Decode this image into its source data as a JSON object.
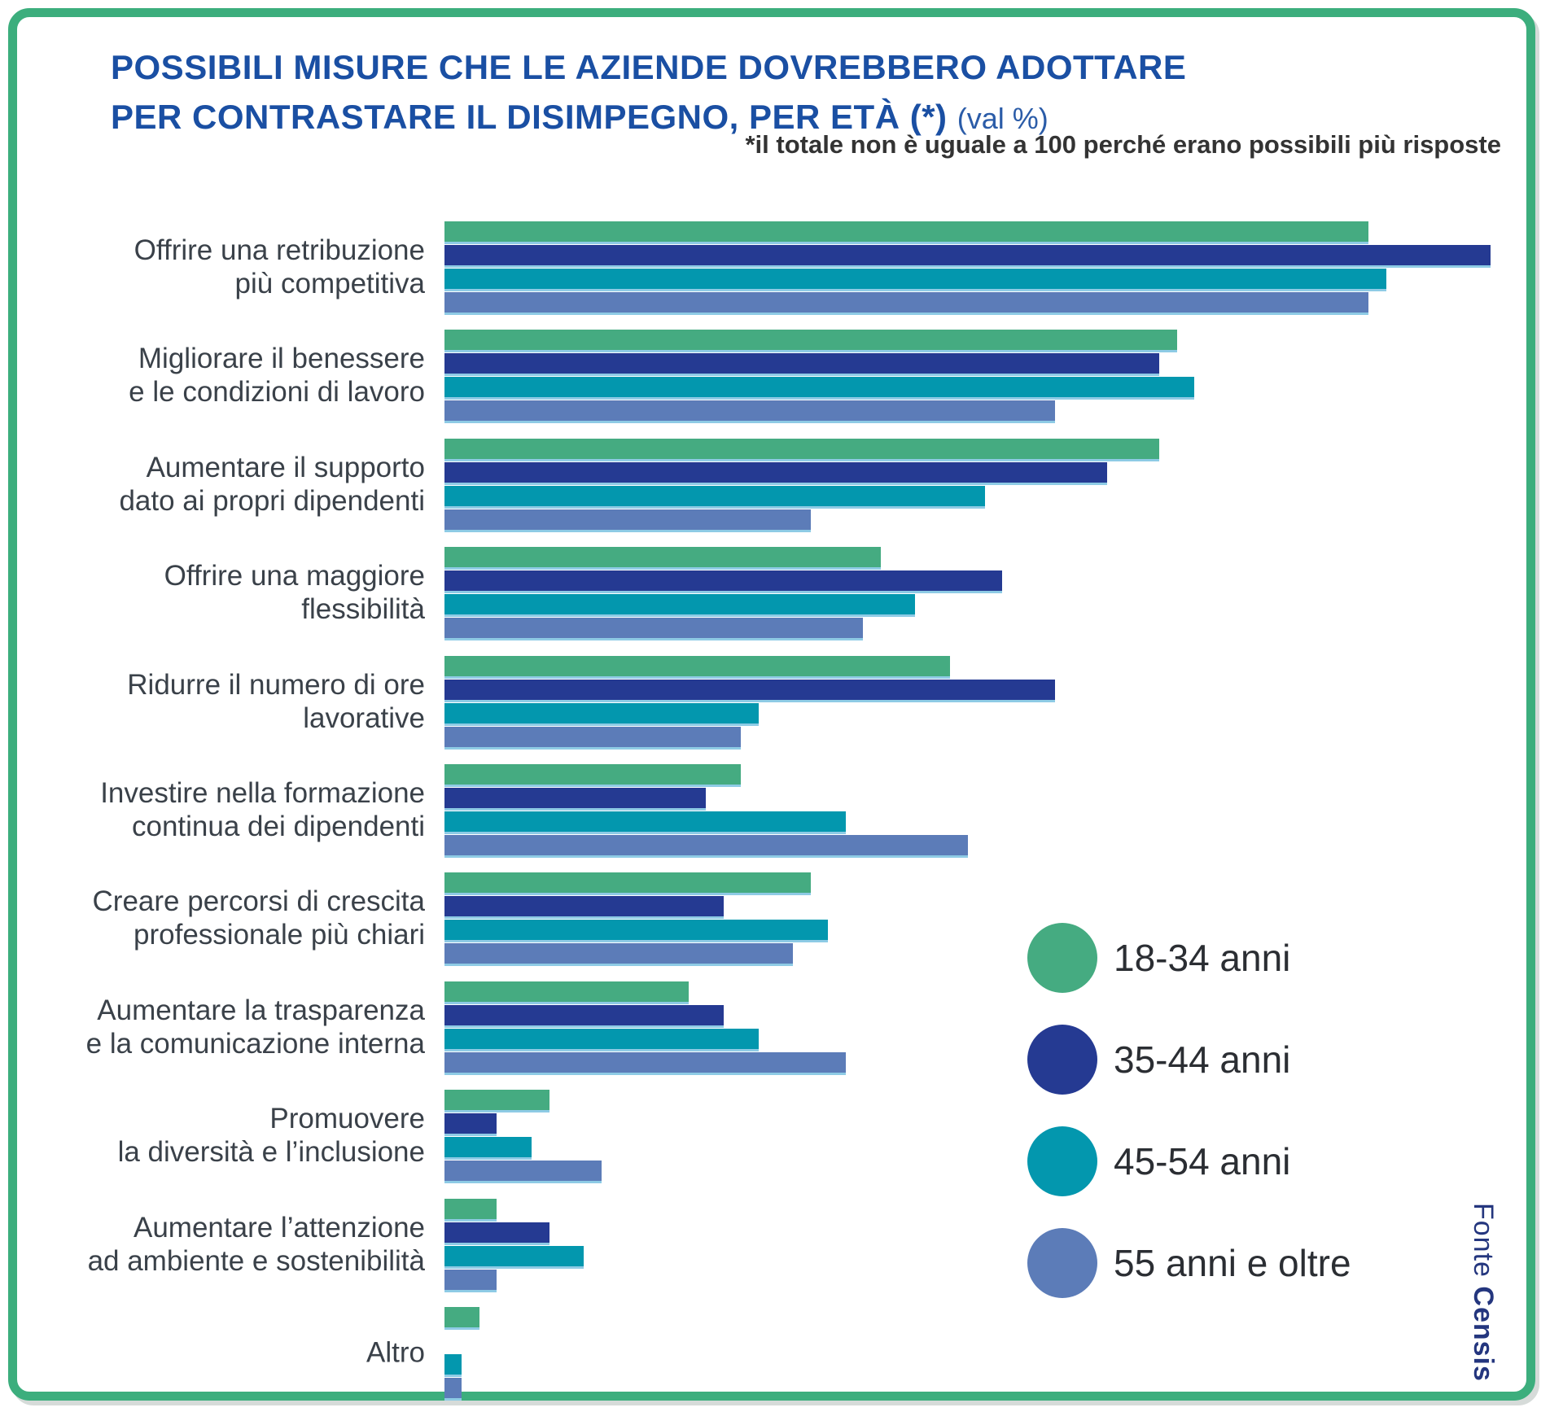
{
  "title": {
    "line1": "POSSIBILI MISURE CHE LE AZIENDE DOVREBBERO ADOTTARE",
    "line2": "PER CONTRASTARE IL DISIMPEGNO, PER ETÀ (*)",
    "suffix": "(val %)"
  },
  "note": "*il totale non è uguale a 100 perché erano possibili più risposte",
  "source": {
    "prefix": "Fonte ",
    "name": "Censis"
  },
  "colors": {
    "frame_green": "#3CAE7D",
    "title_blue": "#1A4FA3",
    "note_text": "#333333",
    "label_text": "#3A4149",
    "bar_edge_lightblue": "#8ECBE5",
    "series_18_34": "#45AB81",
    "series_35_44": "#253A92",
    "series_45_54": "#0397AE",
    "series_55_plus": "#5C7CB8",
    "source_text": "#24367E"
  },
  "legend": [
    {
      "key": "18-34",
      "label": "18-34 anni",
      "color": "#45AB81"
    },
    {
      "key": "35-44",
      "label": "35-44 anni",
      "color": "#253A92"
    },
    {
      "key": "45-54",
      "label": "45-54 anni",
      "color": "#0397AE"
    },
    {
      "key": "55-oltre",
      "label": "55 anni e oltre",
      "color": "#5C7CB8"
    }
  ],
  "chart_data": {
    "type": "bar",
    "orientation": "horizontal",
    "unit": "val %",
    "title": "Possibili misure che le aziende dovrebbero adottare per contrastare il disimpegno, per età (val %)",
    "note": "*il totale non è uguale a 100 perché erano possibili più risposte",
    "legend_position": "right-middle",
    "grid": false,
    "value_axis_shown": false,
    "value_range": [
      0,
      60
    ],
    "categories": [
      "Offrire una retribuzione più competitiva",
      "Migliorare il benessere e le condizioni di lavoro",
      "Aumentare il supporto dato ai propri dipendenti",
      "Offrire una maggiore flessibilità",
      "Ridurre il numero di ore lavorative",
      "Investire nella formazione continua dei dipendenti",
      "Creare percorsi di crescita professionale più chiari",
      "Aumentare la trasparenza e la comunicazione interna",
      "Promuovere la diversità e l’inclusione",
      "Aumentare l’attenzione ad ambiente e sostenibilità",
      "Altro"
    ],
    "category_lines": [
      [
        "Offrire una retribuzione",
        "più competitiva"
      ],
      [
        "Migliorare il benessere",
        "e le condizioni di lavoro"
      ],
      [
        "Aumentare il supporto",
        "dato ai propri dipendenti"
      ],
      [
        "Offrire una maggiore",
        "flessibilità"
      ],
      [
        "Ridurre il numero di ore",
        "lavorative"
      ],
      [
        "Investire nella formazione",
        "continua dei dipendenti"
      ],
      [
        "Creare percorsi di crescita",
        "professionale più chiari"
      ],
      [
        "Aumentare la trasparenza",
        "e la comunicazione interna"
      ],
      [
        "Promuovere",
        "la diversità e l’inclusione"
      ],
      [
        "Aumentare l’attenzione",
        "ad ambiente e sostenibilità"
      ],
      [
        "Altro",
        ""
      ]
    ],
    "series": [
      {
        "name": "18-34 anni",
        "key": "18-34",
        "color": "#45AB81",
        "values": [
          53,
          42,
          41,
          25,
          29,
          17,
          21,
          14,
          6,
          3,
          2
        ]
      },
      {
        "name": "35-44 anni",
        "key": "35-44",
        "color": "#253A92",
        "values": [
          60,
          41,
          38,
          32,
          35,
          15,
          16,
          16,
          3,
          6,
          0
        ]
      },
      {
        "name": "45-54 anni",
        "key": "45-54",
        "color": "#0397AE",
        "values": [
          54,
          43,
          31,
          27,
          18,
          23,
          22,
          18,
          5,
          8,
          1
        ]
      },
      {
        "name": "55 anni e oltre",
        "key": "55-oltre",
        "color": "#5C7CB8",
        "values": [
          53,
          35,
          21,
          24,
          17,
          30,
          20,
          23,
          9,
          3,
          1
        ]
      }
    ]
  }
}
